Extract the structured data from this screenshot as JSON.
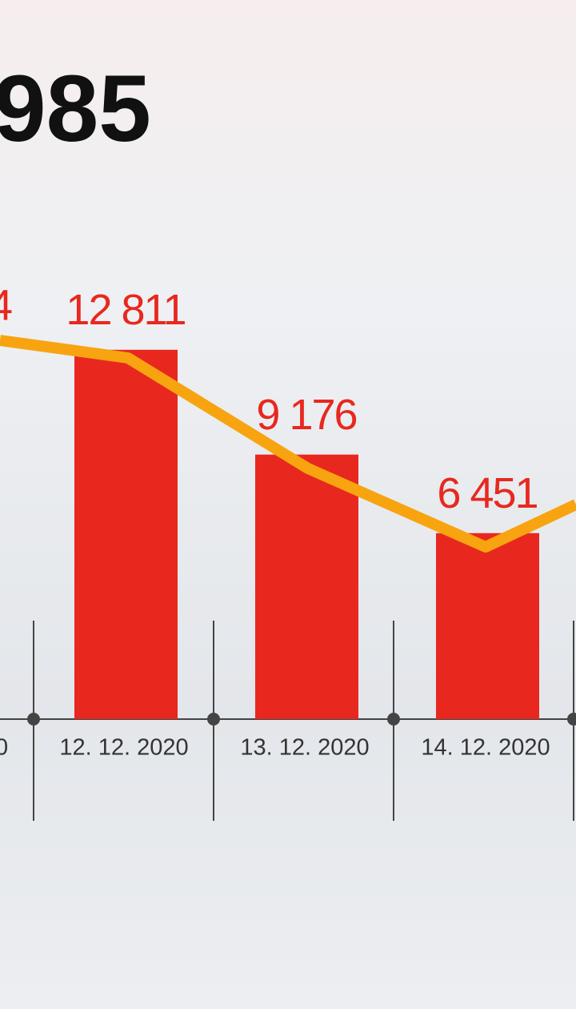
{
  "chart_data": {
    "type": "bar",
    "title": "985",
    "annotations": [
      "4",
      "0"
    ],
    "categories": [
      "12. 12. 2020",
      "13. 12. 2020",
      "14. 12. 2020"
    ],
    "values": [
      12811,
      9176,
      6451
    ],
    "value_labels": [
      "12 811",
      "9 176",
      "6 451"
    ],
    "color": "#e8281f",
    "ylim": [
      0,
      25000
    ]
  }
}
